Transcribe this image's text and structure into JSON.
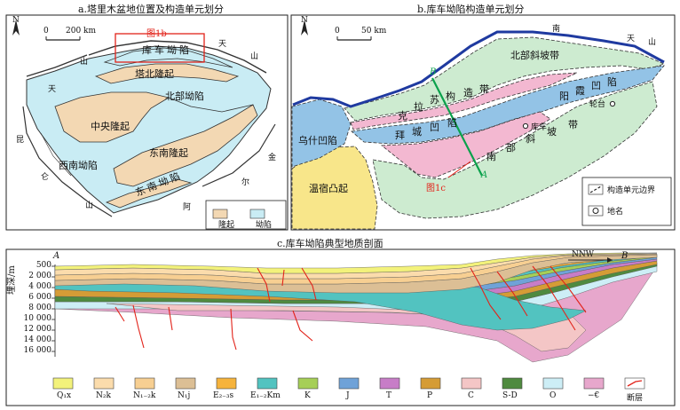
{
  "panel_a": {
    "title": "a.塔里木盆地位置及构造单元划分",
    "scale_start": "0",
    "scale_end": "200 km",
    "north": "N",
    "box_label": "图1b",
    "units": {
      "kuche": "库车坳陷",
      "tabei": "塔北隆起",
      "beibu": "北部坳陷",
      "zhongyang": "中央隆起",
      "xinan": "西南坳陷",
      "dongnan_uplift": "东南隆起",
      "dongnan_depression": "东南坳陷"
    },
    "mountain_chars": {
      "tian1": "天",
      "shan1": "山",
      "tian2": "天",
      "shan2": "山",
      "kun": "昆",
      "lun": "仑",
      "shan3": "山",
      "a1": "阿",
      "er": "尔",
      "jin": "金"
    },
    "legend": {
      "uplift": "隆起",
      "depression": "坳陷"
    },
    "colors": {
      "uplift": "#f3d8b3",
      "depression": "#c9ecf4"
    }
  },
  "panel_b": {
    "title": "b.库车坳陷构造单元划分",
    "scale_start": "0",
    "scale_end": "50 km",
    "north": "N",
    "units": {
      "north_slope": "北部斜坡带",
      "klsu_chars": [
        "克",
        "拉",
        "苏",
        "构",
        "造",
        "带"
      ],
      "baicheng_chars": [
        "拜",
        "城",
        "凹",
        "陷"
      ],
      "qiulita_chars": [
        "秋",
        "里",
        "塔",
        "格",
        "构",
        "造",
        "带"
      ],
      "yangxia_chars": [
        "阳",
        "霞",
        "凹",
        "陷"
      ],
      "south_slope_chars": [
        "南",
        "部",
        "斜",
        "坡",
        "带"
      ],
      "wushi": "乌什凹陷",
      "wensu": "温宿凸起"
    },
    "places": {
      "kuche": "库车",
      "luntai": "轮台"
    },
    "mountain_chars": {
      "nan": "南",
      "tian": "天",
      "shan": "山"
    },
    "section_a": "A",
    "section_b": "B",
    "fig_label": "图1c",
    "legend": {
      "boundary": "构造单元边界",
      "place": "地名"
    },
    "colors": {
      "north_slope": "#cdebd0",
      "south_slope": "#cdebd0",
      "belt": "#f3b8d1",
      "depression": "#93c3e6",
      "wensu": "#f8e68a",
      "mountain": "#1f3aa0"
    }
  },
  "panel_c": {
    "title": "c.库车坳陷典型地质剖面",
    "end_a": "A",
    "end_b": "B",
    "direction": "NNW",
    "y_axis_label": "埋深/m",
    "y_ticks": [
      "500",
      "2 000",
      "4 000",
      "6 000",
      "8 000",
      "10 000",
      "12 000",
      "14 000",
      "16 000"
    ],
    "legend": [
      {
        "label": "Q₁x",
        "color": "#f3f27b"
      },
      {
        "label": "N₂k",
        "color": "#fbdcac"
      },
      {
        "label": "N₁₋₂k",
        "color": "#f7cf92"
      },
      {
        "label": "N₁j",
        "color": "#dcbf95"
      },
      {
        "label": "E₂₋₃s",
        "color": "#f6b33c"
      },
      {
        "label": "E₁₋₂Km",
        "color": "#52c3c0"
      },
      {
        "label": "K",
        "color": "#a6cf57"
      },
      {
        "label": "J",
        "color": "#6fa2d8"
      },
      {
        "label": "T",
        "color": "#c77dc7"
      },
      {
        "label": "P",
        "color": "#d59c36"
      },
      {
        "label": "C",
        "color": "#f4c6c6"
      },
      {
        "label": "S-D",
        "color": "#4f8a3f"
      },
      {
        "label": "O",
        "color": "#cdeef6"
      },
      {
        "label": "−€",
        "color": "#e7a7cc"
      },
      {
        "label": "断层",
        "color": "#e2231a"
      }
    ]
  }
}
